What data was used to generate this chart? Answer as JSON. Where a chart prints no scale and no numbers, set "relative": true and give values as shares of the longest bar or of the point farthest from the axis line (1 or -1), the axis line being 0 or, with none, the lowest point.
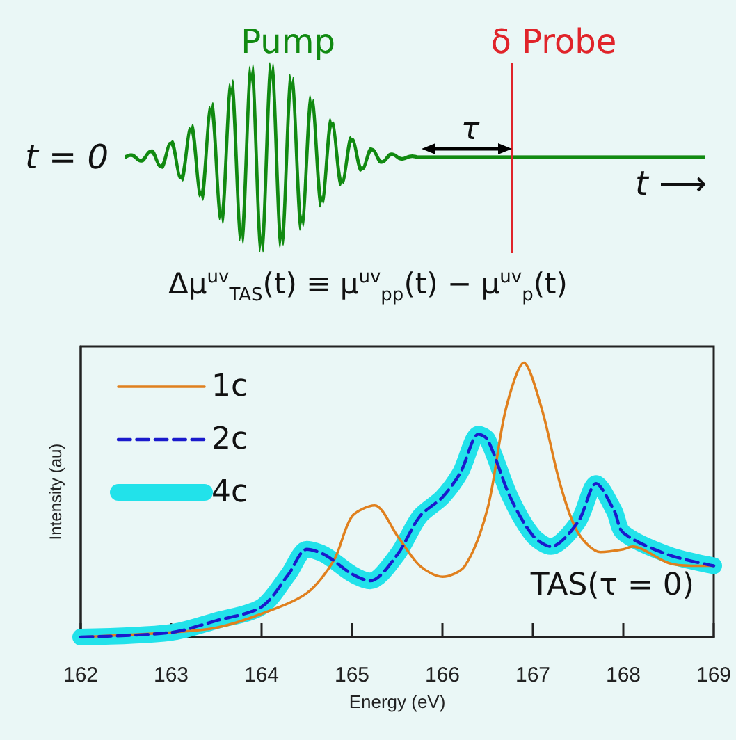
{
  "chart_data": {
    "type": "line",
    "title": "Δμ$^{uv}$$_{TAS}$(t) ≡ μ$^{uv}$$_{pp}$(t) − μ$^{uv}$$_{p}$(t)",
    "xlabel": "Energy (eV)",
    "ylabel": "Intensity (au)",
    "annotations": [
      "Pump",
      "δ Probe",
      "t = 0",
      "τ",
      "t ⟶",
      "TAS(τ = 0)"
    ],
    "relative": true,
    "xlim": [
      162,
      169
    ],
    "xticks": [
      162,
      163,
      164,
      165,
      166,
      167,
      168,
      169
    ],
    "grid": false,
    "legend": "top left",
    "marker": "none",
    "series": [
      {
        "name": "1c",
        "color": "#e0801e",
        "line_style": "solid",
        "x": [
          162,
          163,
          163.5,
          164,
          164.5,
          164.8,
          165,
          165.25,
          165.5,
          165.75,
          166,
          166.25,
          166.5,
          166.7,
          166.9,
          167.1,
          167.3,
          167.5,
          167.75,
          168,
          168.1,
          168.5,
          168.75,
          169
        ],
        "values": [
          0,
          0.017,
          0.034,
          0.085,
          0.16,
          0.28,
          0.44,
          0.48,
          0.37,
          0.26,
          0.22,
          0.26,
          0.47,
          0.83,
          1,
          0.83,
          0.56,
          0.38,
          0.31,
          0.32,
          0.33,
          0.27,
          0.26,
          0.26
        ]
      },
      {
        "name": "2c",
        "color": "#1a1acc",
        "line_style": "dashed",
        "x": [
          162,
          163,
          163.5,
          164,
          164.3,
          164.5,
          164.7,
          165,
          165.2,
          165.5,
          165.75,
          166,
          166.2,
          166.4,
          166.5,
          166.75,
          167,
          167.2,
          167.5,
          167.7,
          167.9,
          168,
          168.5,
          169
        ],
        "values": [
          0,
          0.017,
          0.06,
          0.11,
          0.23,
          0.32,
          0.3,
          0.23,
          0.205,
          0.3,
          0.44,
          0.51,
          0.6,
          0.74,
          0.72,
          0.51,
          0.37,
          0.33,
          0.42,
          0.56,
          0.46,
          0.38,
          0.3,
          0.26
        ]
      },
      {
        "name": "4c",
        "color": "#22e2ea",
        "line_style": "solid",
        "x": [
          162,
          163,
          163.5,
          164,
          164.3,
          164.5,
          164.7,
          165,
          165.2,
          165.5,
          165.75,
          166,
          166.2,
          166.4,
          166.5,
          166.75,
          167,
          167.2,
          167.5,
          167.7,
          167.9,
          168,
          168.5,
          169
        ],
        "values": [
          0,
          0.017,
          0.06,
          0.11,
          0.23,
          0.32,
          0.3,
          0.23,
          0.205,
          0.3,
          0.44,
          0.51,
          0.6,
          0.74,
          0.72,
          0.51,
          0.37,
          0.33,
          0.42,
          0.56,
          0.46,
          0.38,
          0.3,
          0.26
        ]
      }
    ]
  }
}
